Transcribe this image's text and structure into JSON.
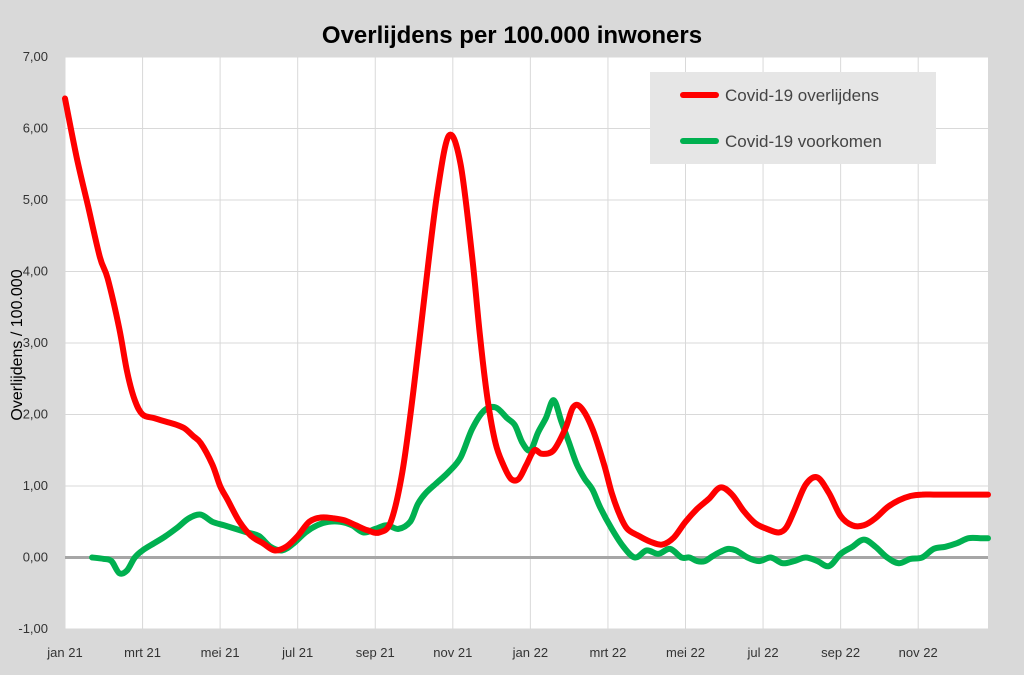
{
  "chart_data": {
    "type": "line",
    "title": "Overlijdens per 100.000 inwoners",
    "ylabel": "Overlijdens / 100.000",
    "xlabel": "",
    "ylim": [
      -1,
      7
    ],
    "xlim": [
      0,
      23.8
    ],
    "y_ticks": [
      "7,00",
      "6,00",
      "5,00",
      "4,00",
      "3,00",
      "2,00",
      "1,00",
      "0,00",
      "-1,00"
    ],
    "x_ticks": [
      "jan 21",
      "mrt 21",
      "mei 21",
      "jul 21",
      "sep 21",
      "nov 21",
      "jan 22",
      "mrt 22",
      "mei 22",
      "jul 22",
      "sep 22",
      "nov 22"
    ],
    "x_tick_positions": [
      0,
      2,
      4,
      6,
      8,
      10,
      12,
      14,
      16,
      18,
      20,
      22
    ],
    "grid": true,
    "legend_position": "top-right",
    "series": [
      {
        "name": "Covid-19 overlijdens",
        "color": "#ff0000",
        "x": [
          0,
          0.3,
          0.6,
          0.9,
          1.1,
          1.4,
          1.6,
          1.8,
          2.0,
          2.3,
          2.6,
          2.9,
          3.1,
          3.3,
          3.5,
          3.8,
          4.0,
          4.2,
          4.5,
          4.8,
          5.1,
          5.4,
          5.7,
          6.0,
          6.3,
          6.6,
          6.9,
          7.2,
          7.5,
          7.8,
          8.1,
          8.4,
          8.7,
          9.0,
          9.3,
          9.6,
          9.9,
          10.2,
          10.5,
          10.7,
          10.9,
          11.1,
          11.3,
          11.5,
          11.7,
          11.9,
          12.1,
          12.3,
          12.6,
          12.9,
          13.1,
          13.3,
          13.6,
          13.9,
          14.1,
          14.3,
          14.5,
          14.8,
          15.1,
          15.4,
          15.7,
          16.0,
          16.3,
          16.6,
          16.9,
          17.2,
          17.5,
          17.8,
          18.1,
          18.4,
          18.6,
          18.8,
          19.1,
          19.4,
          19.7,
          20.0,
          20.3,
          20.6,
          20.9,
          21.2,
          21.5,
          21.8,
          22.1,
          22.4,
          22.7,
          23.0,
          23.3,
          23.6,
          23.8
        ],
        "values": [
          6.42,
          5.6,
          4.9,
          4.2,
          3.9,
          3.2,
          2.6,
          2.2,
          2.0,
          1.95,
          1.9,
          1.85,
          1.8,
          1.7,
          1.6,
          1.3,
          1.0,
          0.8,
          0.5,
          0.3,
          0.2,
          0.1,
          0.15,
          0.3,
          0.5,
          0.56,
          0.55,
          0.52,
          0.45,
          0.38,
          0.35,
          0.5,
          1.2,
          2.4,
          3.8,
          5.1,
          5.9,
          5.5,
          4.2,
          3.1,
          2.2,
          1.6,
          1.3,
          1.1,
          1.1,
          1.3,
          1.5,
          1.45,
          1.5,
          1.8,
          2.1,
          2.1,
          1.8,
          1.3,
          0.9,
          0.6,
          0.4,
          0.3,
          0.22,
          0.18,
          0.28,
          0.5,
          0.68,
          0.82,
          0.98,
          0.88,
          0.65,
          0.48,
          0.4,
          0.35,
          0.42,
          0.65,
          1.02,
          1.12,
          0.9,
          0.58,
          0.45,
          0.45,
          0.55,
          0.7,
          0.8,
          0.86,
          0.88,
          0.88,
          0.88,
          0.88,
          0.88,
          0.88,
          0.88
        ]
      },
      {
        "name": "Covid-19 voorkomen",
        "color": "#00b050",
        "x": [
          0.7,
          1.0,
          1.2,
          1.4,
          1.6,
          1.8,
          2.0,
          2.3,
          2.6,
          2.9,
          3.2,
          3.5,
          3.8,
          4.1,
          4.4,
          4.7,
          5.0,
          5.3,
          5.6,
          5.9,
          6.2,
          6.5,
          6.8,
          7.1,
          7.4,
          7.7,
          8.0,
          8.3,
          8.6,
          8.9,
          9.1,
          9.3,
          9.6,
          9.9,
          10.2,
          10.5,
          10.8,
          11.1,
          11.4,
          11.6,
          11.8,
          12.0,
          12.2,
          12.4,
          12.6,
          12.8,
          13.0,
          13.2,
          13.4,
          13.6,
          13.8,
          14.1,
          14.4,
          14.7,
          15.0,
          15.3,
          15.6,
          15.9,
          16.1,
          16.3,
          16.5,
          16.7,
          16.9,
          17.1,
          17.3,
          17.6,
          17.9,
          18.2,
          18.5,
          18.8,
          19.1,
          19.4,
          19.7,
          20.0,
          20.3,
          20.6,
          20.9,
          21.2,
          21.5,
          21.8,
          22.1,
          22.4,
          22.7,
          23.0,
          23.3,
          23.6,
          23.8
        ],
        "values": [
          0.0,
          -0.02,
          -0.05,
          -0.22,
          -0.18,
          0.0,
          0.1,
          0.2,
          0.3,
          0.42,
          0.55,
          0.6,
          0.5,
          0.45,
          0.4,
          0.35,
          0.3,
          0.15,
          0.1,
          0.2,
          0.35,
          0.45,
          0.5,
          0.5,
          0.45,
          0.35,
          0.4,
          0.45,
          0.4,
          0.5,
          0.75,
          0.9,
          1.05,
          1.2,
          1.4,
          1.8,
          2.05,
          2.1,
          1.95,
          1.85,
          1.6,
          1.5,
          1.75,
          1.95,
          2.2,
          1.9,
          1.6,
          1.3,
          1.1,
          0.95,
          0.7,
          0.4,
          0.15,
          0.0,
          0.1,
          0.05,
          0.12,
          0.0,
          0.0,
          -0.05,
          -0.05,
          0.02,
          0.08,
          0.12,
          0.1,
          0.0,
          -0.05,
          0.0,
          -0.08,
          -0.05,
          0.0,
          -0.05,
          -0.12,
          0.05,
          0.15,
          0.25,
          0.15,
          0.0,
          -0.08,
          -0.02,
          0.0,
          0.12,
          0.15,
          0.2,
          0.27,
          0.27,
          0.27
        ]
      }
    ]
  }
}
